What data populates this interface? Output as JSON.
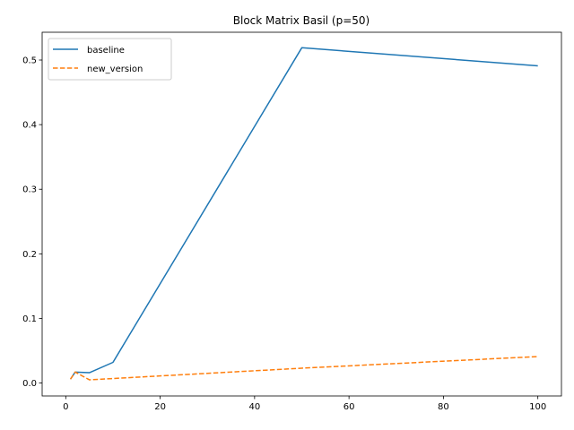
{
  "chart_data": {
    "type": "line",
    "title": "Block Matrix Basil (p=50)",
    "xlabel": "",
    "ylabel": "",
    "xlim": [
      -5,
      105
    ],
    "ylim": [
      -0.02,
      0.543
    ],
    "xticks": [
      0,
      20,
      40,
      60,
      80,
      100
    ],
    "yticks": [
      0.0,
      0.1,
      0.2,
      0.3,
      0.4,
      0.5
    ],
    "xtick_labels": [
      "0",
      "20",
      "40",
      "60",
      "80",
      "100"
    ],
    "ytick_labels": [
      "0.0",
      "0.1",
      "0.2",
      "0.3",
      "0.4",
      "0.5"
    ],
    "grid": false,
    "legend_position": "top-left",
    "series": [
      {
        "name": "baseline",
        "color": "#1f77b4",
        "style": "solid",
        "x": [
          1,
          2,
          5,
          10,
          50,
          100
        ],
        "y": [
          0.006,
          0.017,
          0.016,
          0.032,
          0.519,
          0.491
        ]
      },
      {
        "name": "new_version",
        "color": "#ff7f0e",
        "style": "dashed",
        "x": [
          1,
          2,
          5,
          10,
          50,
          100
        ],
        "y": [
          0.006,
          0.017,
          0.005,
          0.007,
          0.023,
          0.041
        ]
      }
    ]
  }
}
